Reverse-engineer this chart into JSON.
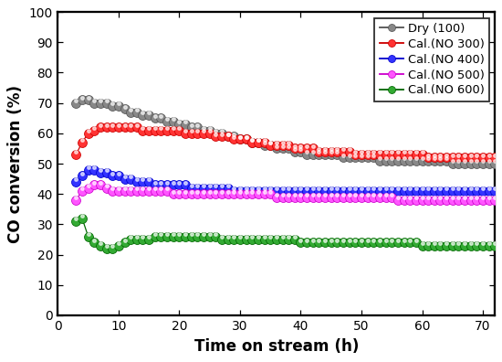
{
  "title": "",
  "xlabel": "Time on stream (h)",
  "ylabel": "CO conversion (%)",
  "xlim": [
    0,
    72
  ],
  "ylim": [
    0,
    100
  ],
  "xticks": [
    0,
    10,
    20,
    30,
    40,
    50,
    60,
    70
  ],
  "yticks": [
    0,
    10,
    20,
    30,
    40,
    50,
    60,
    70,
    80,
    90,
    100
  ],
  "series": [
    {
      "label": "Dry (100)",
      "color": "#555555",
      "mfc": "#888888",
      "x": [
        3,
        4,
        5,
        6,
        7,
        8,
        9,
        10,
        11,
        12,
        13,
        14,
        15,
        16,
        17,
        18,
        19,
        20,
        21,
        22,
        23,
        24,
        25,
        26,
        27,
        28,
        29,
        30,
        31,
        32,
        33,
        34,
        35,
        36,
        37,
        38,
        39,
        40,
        41,
        42,
        43,
        44,
        45,
        46,
        47,
        48,
        49,
        50,
        51,
        52,
        53,
        54,
        55,
        56,
        57,
        58,
        59,
        60,
        61,
        62,
        63,
        64,
        65,
        66,
        67,
        68,
        69,
        70,
        71,
        72
      ],
      "y": [
        70,
        71,
        71,
        70,
        70,
        70,
        69,
        69,
        68,
        67,
        67,
        66,
        66,
        65,
        65,
        64,
        64,
        63,
        63,
        62,
        62,
        61,
        61,
        60,
        60,
        59,
        59,
        58,
        58,
        57,
        57,
        56,
        56,
        55,
        55,
        55,
        54,
        54,
        53,
        53,
        53,
        53,
        53,
        53,
        52,
        52,
        52,
        52,
        52,
        52,
        51,
        51,
        51,
        51,
        51,
        51,
        51,
        51,
        51,
        51,
        51,
        51,
        50,
        50,
        50,
        50,
        50,
        50,
        50,
        50
      ]
    },
    {
      "label": "Cal.(NO 300)",
      "color": "#cc0000",
      "mfc": "#ff3333",
      "x": [
        3,
        4,
        5,
        6,
        7,
        8,
        9,
        10,
        11,
        12,
        13,
        14,
        15,
        16,
        17,
        18,
        19,
        20,
        21,
        22,
        23,
        24,
        25,
        26,
        27,
        28,
        29,
        30,
        31,
        32,
        33,
        34,
        35,
        36,
        37,
        38,
        39,
        40,
        41,
        42,
        43,
        44,
        45,
        46,
        47,
        48,
        49,
        50,
        51,
        52,
        53,
        54,
        55,
        56,
        57,
        58,
        59,
        60,
        61,
        62,
        63,
        64,
        65,
        66,
        67,
        68,
        69,
        70,
        71,
        72
      ],
      "y": [
        53,
        57,
        60,
        61,
        62,
        62,
        62,
        62,
        62,
        62,
        62,
        61,
        61,
        61,
        61,
        61,
        61,
        61,
        60,
        60,
        60,
        60,
        60,
        59,
        59,
        59,
        58,
        58,
        58,
        57,
        57,
        57,
        56,
        56,
        56,
        56,
        55,
        55,
        55,
        55,
        54,
        54,
        54,
        54,
        54,
        54,
        53,
        53,
        53,
        53,
        53,
        53,
        53,
        53,
        53,
        53,
        53,
        53,
        52,
        52,
        52,
        52,
        52,
        52,
        52,
        52,
        52,
        52,
        52,
        52
      ]
    },
    {
      "label": "Cal.(NO 400)",
      "color": "#0000cc",
      "mfc": "#3333ff",
      "x": [
        3,
        4,
        5,
        6,
        7,
        8,
        9,
        10,
        11,
        12,
        13,
        14,
        15,
        16,
        17,
        18,
        19,
        20,
        21,
        22,
        23,
        24,
        25,
        26,
        27,
        28,
        29,
        30,
        31,
        32,
        33,
        34,
        35,
        36,
        37,
        38,
        39,
        40,
        41,
        42,
        43,
        44,
        45,
        46,
        47,
        48,
        49,
        50,
        51,
        52,
        53,
        54,
        55,
        56,
        57,
        58,
        59,
        60,
        61,
        62,
        63,
        64,
        65,
        66,
        67,
        68,
        69,
        70,
        71,
        72
      ],
      "y": [
        44,
        46,
        48,
        48,
        47,
        47,
        46,
        46,
        45,
        45,
        44,
        44,
        44,
        43,
        43,
        43,
        43,
        43,
        43,
        42,
        42,
        42,
        42,
        42,
        42,
        42,
        41,
        41,
        41,
        41,
        41,
        41,
        41,
        41,
        41,
        41,
        41,
        41,
        41,
        41,
        41,
        41,
        41,
        41,
        41,
        41,
        41,
        41,
        41,
        41,
        41,
        41,
        41,
        41,
        41,
        41,
        41,
        41,
        41,
        41,
        41,
        41,
        41,
        41,
        41,
        41,
        41,
        41,
        41,
        41
      ]
    },
    {
      "label": "Cal.(NO 500)",
      "color": "#cc00cc",
      "mfc": "#ff55ff",
      "x": [
        3,
        4,
        5,
        6,
        7,
        8,
        9,
        10,
        11,
        12,
        13,
        14,
        15,
        16,
        17,
        18,
        19,
        20,
        21,
        22,
        23,
        24,
        25,
        26,
        27,
        28,
        29,
        30,
        31,
        32,
        33,
        34,
        35,
        36,
        37,
        38,
        39,
        40,
        41,
        42,
        43,
        44,
        45,
        46,
        47,
        48,
        49,
        50,
        51,
        52,
        53,
        54,
        55,
        56,
        57,
        58,
        59,
        60,
        61,
        62,
        63,
        64,
        65,
        66,
        67,
        68,
        69,
        70,
        71,
        72
      ],
      "y": [
        38,
        41,
        42,
        43,
        43,
        42,
        41,
        41,
        41,
        41,
        41,
        41,
        41,
        41,
        41,
        41,
        40,
        40,
        40,
        40,
        40,
        40,
        40,
        40,
        40,
        40,
        40,
        40,
        40,
        40,
        40,
        40,
        40,
        39,
        39,
        39,
        39,
        39,
        39,
        39,
        39,
        39,
        39,
        39,
        39,
        39,
        39,
        39,
        39,
        39,
        39,
        39,
        39,
        38,
        38,
        38,
        38,
        38,
        38,
        38,
        38,
        38,
        38,
        38,
        38,
        38,
        38,
        38,
        38,
        38
      ]
    },
    {
      "label": "Cal.(NO 600)",
      "color": "#006600",
      "mfc": "#33aa33",
      "x": [
        3,
        4,
        5,
        6,
        7,
        8,
        9,
        10,
        11,
        12,
        13,
        14,
        15,
        16,
        17,
        18,
        19,
        20,
        21,
        22,
        23,
        24,
        25,
        26,
        27,
        28,
        29,
        30,
        31,
        32,
        33,
        34,
        35,
        36,
        37,
        38,
        39,
        40,
        41,
        42,
        43,
        44,
        45,
        46,
        47,
        48,
        49,
        50,
        51,
        52,
        53,
        54,
        55,
        56,
        57,
        58,
        59,
        60,
        61,
        62,
        63,
        64,
        65,
        66,
        67,
        68,
        69,
        70,
        71,
        72
      ],
      "y": [
        31,
        32,
        26,
        24,
        23,
        22,
        22,
        23,
        24,
        25,
        25,
        25,
        25,
        26,
        26,
        26,
        26,
        26,
        26,
        26,
        26,
        26,
        26,
        26,
        25,
        25,
        25,
        25,
        25,
        25,
        25,
        25,
        25,
        25,
        25,
        25,
        25,
        24,
        24,
        24,
        24,
        24,
        24,
        24,
        24,
        24,
        24,
        24,
        24,
        24,
        24,
        24,
        24,
        24,
        24,
        24,
        24,
        23,
        23,
        23,
        23,
        23,
        23,
        23,
        23,
        23,
        23,
        23,
        23,
        23
      ]
    }
  ],
  "legend_loc": "upper right",
  "marker": "o",
  "markersize": 6.5,
  "linewidth": 0.8,
  "figsize": [
    5.0,
    3.6
  ],
  "dpi": 110
}
